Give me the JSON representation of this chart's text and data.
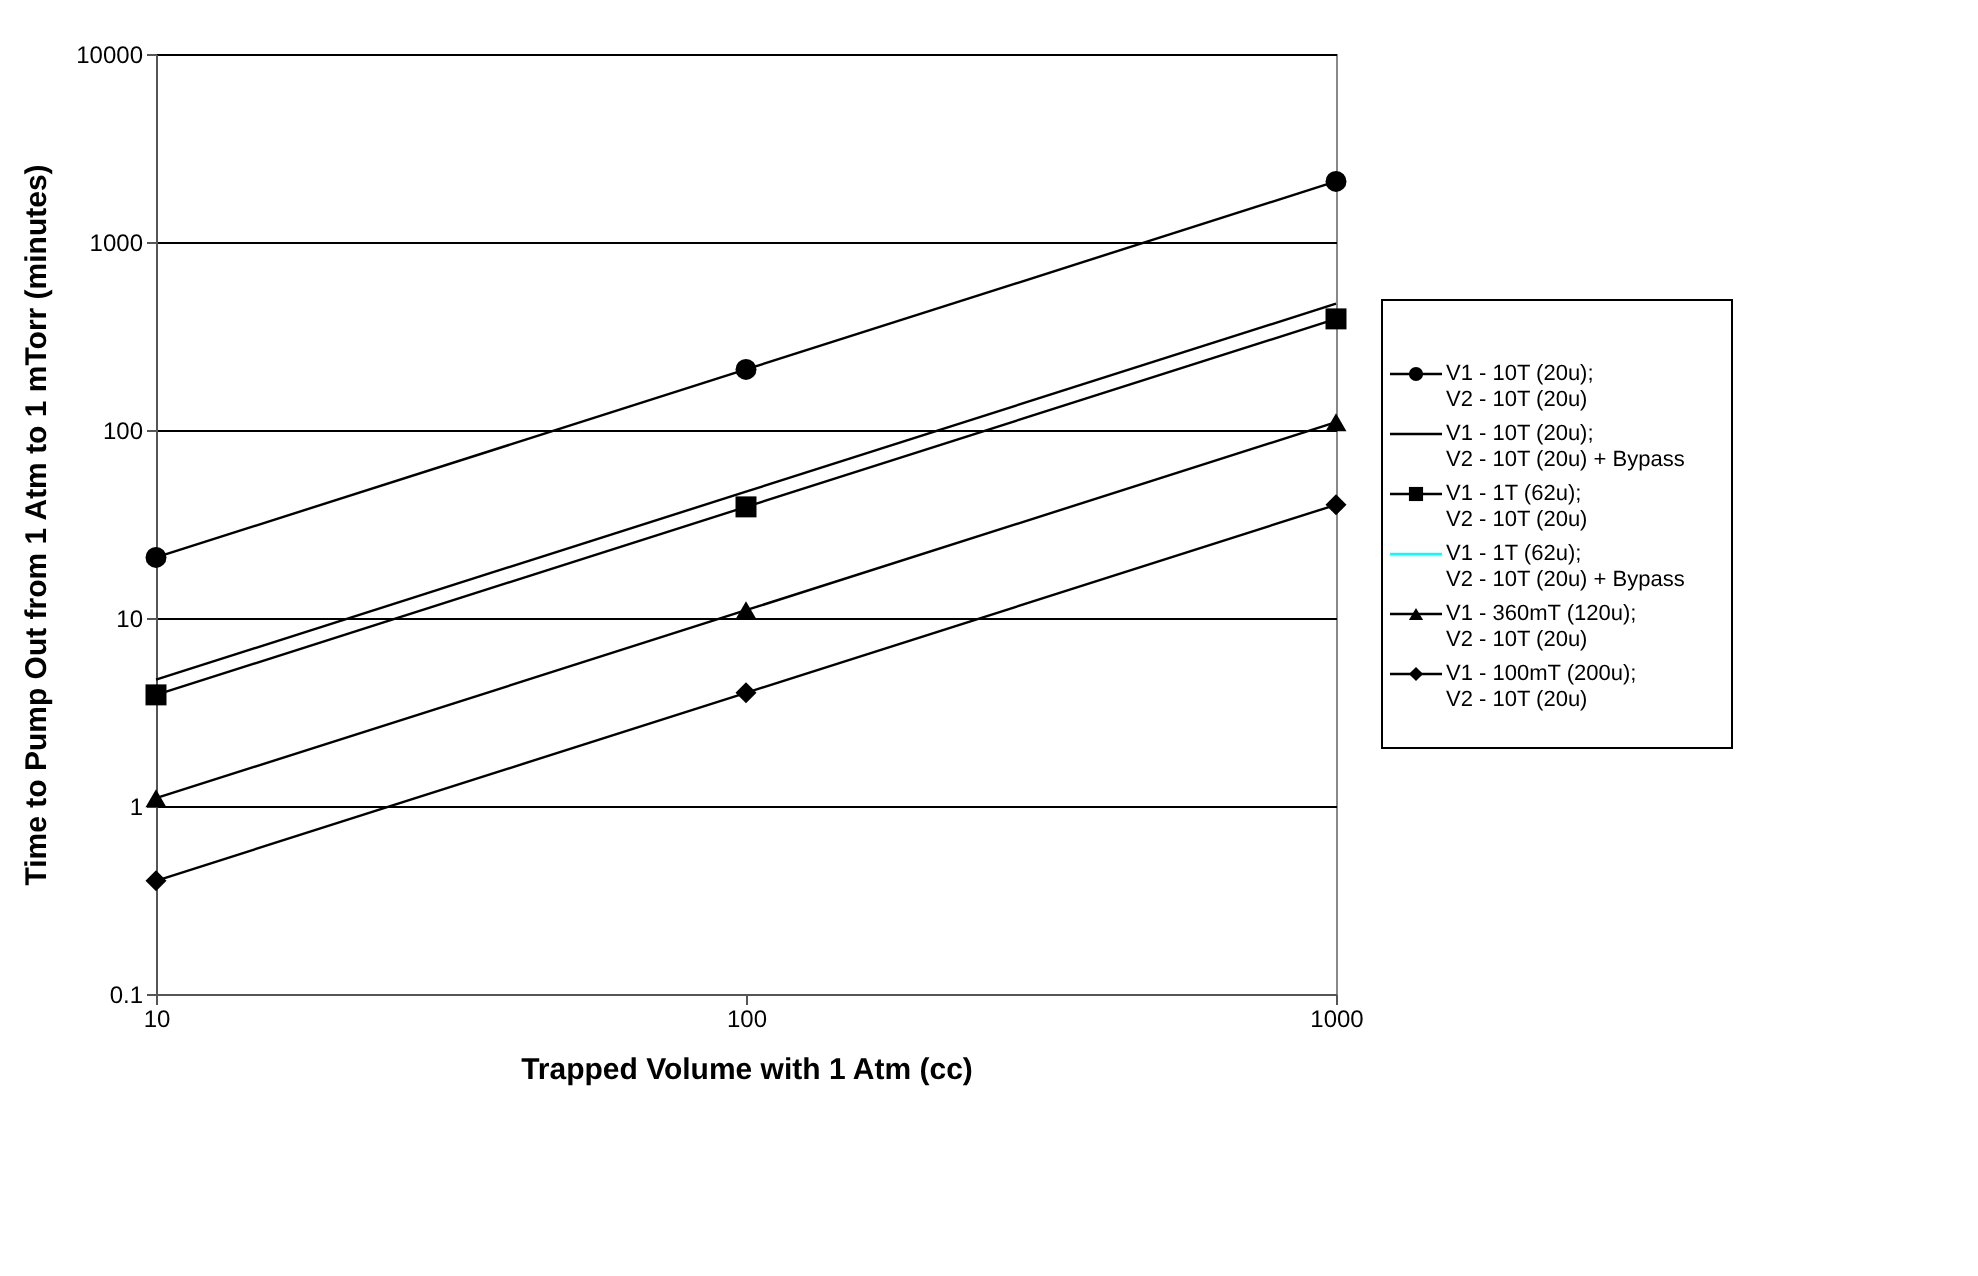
{
  "chart_data": {
    "type": "line",
    "xlabel": "Trapped Volume with 1 Atm (cc)",
    "ylabel": "Time to Pump Out from 1 Atm to 1 mTorr (minutes)",
    "x": [
      10,
      100,
      1000
    ],
    "log": "xy",
    "xlim": [
      10,
      1000
    ],
    "xticks": [
      10,
      100,
      1000
    ],
    "ylim": [
      0.1,
      10000
    ],
    "yticks": [
      0.1,
      1,
      10,
      100,
      1000,
      10000
    ],
    "grid": "y",
    "legend": "right",
    "line_style": "solid",
    "series": [
      {
        "name": "V1 - 10T (20u); V2 - 10T (20u)",
        "color": "#000000",
        "marker": "circle",
        "values": [
          21,
          210,
          2100
        ]
      },
      {
        "name": "V1 - 10T (20u); V2 - 10T (20u) + Bypass",
        "color": "#000000",
        "marker": "none",
        "values": [
          4.7,
          47,
          470
        ]
      },
      {
        "name": "V1 - 1T (62u); V2 - 10T (20u)",
        "color": "#000000",
        "marker": "square",
        "values": [
          3.9,
          39,
          390
        ]
      },
      {
        "name": "V1 - 1T (62u); V2 - 10T (20u) + Bypass",
        "color": "#00ffff",
        "marker": "none",
        "values": [
          null,
          null,
          null
        ]
      },
      {
        "name": "V1 - 360mT (120u); V2 - 10T (20u)",
        "color": "#000000",
        "marker": "triangle",
        "values": [
          1.1,
          11,
          110
        ]
      },
      {
        "name": "V1 - 100mT (200u); V2 - 10T (20u)",
        "color": "#000000",
        "marker": "diamond",
        "values": [
          0.4,
          4,
          40
        ]
      }
    ]
  }
}
